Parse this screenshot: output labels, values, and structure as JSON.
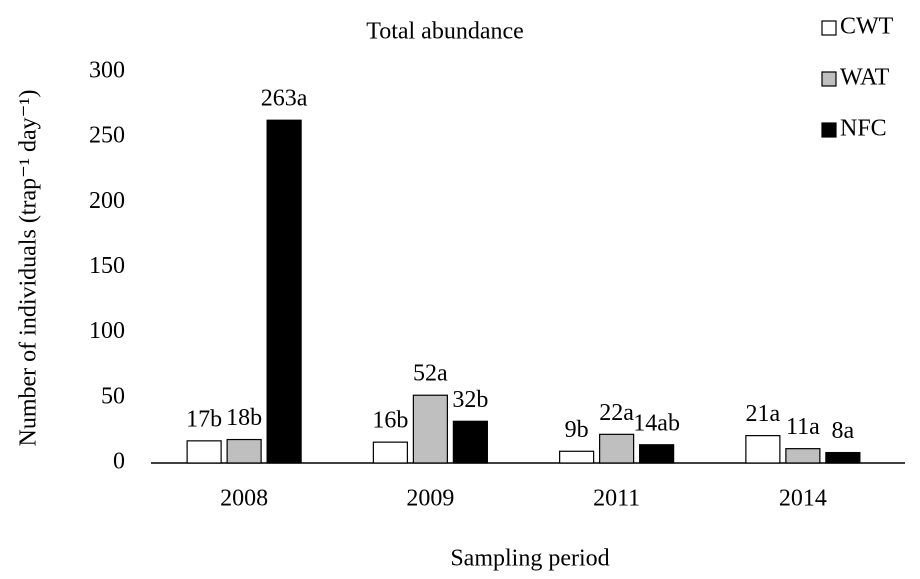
{
  "chart_data": {
    "type": "bar",
    "title": "Total abundance",
    "xlabel": "Sampling period",
    "ylabel": "Number of individuals  (trap⁻¹ day⁻¹)",
    "categories": [
      "2008",
      "2009",
      "2011",
      "2014"
    ],
    "series": [
      {
        "name": "CWT",
        "color": "#ffffff",
        "values": [
          17,
          16,
          9,
          21
        ],
        "value_labels": [
          "17b",
          "16b",
          "9b",
          "21a"
        ]
      },
      {
        "name": "WAT",
        "color": "#bfbfbf",
        "values": [
          18,
          52,
          22,
          11
        ],
        "value_labels": [
          "18b",
          "52a",
          "22a",
          "11a"
        ]
      },
      {
        "name": "NFC",
        "color": "#000000",
        "values": [
          263,
          32,
          14,
          8
        ],
        "value_labels": [
          "263a",
          "32b",
          "14ab",
          "8a"
        ]
      }
    ],
    "ylim": [
      0,
      300
    ],
    "yticks": [
      0,
      50,
      100,
      150,
      200,
      250,
      300
    ],
    "grid": false,
    "legend": "upper right"
  }
}
